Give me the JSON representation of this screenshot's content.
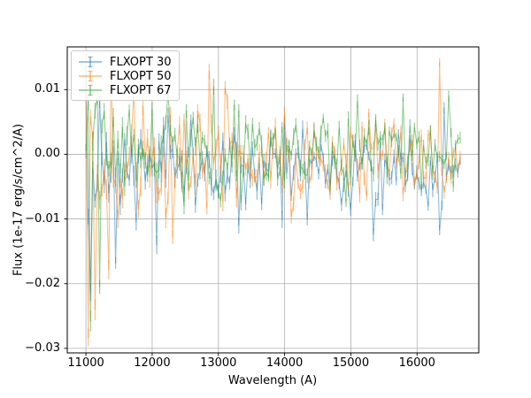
{
  "chart_data": {
    "type": "line",
    "subtype": "errorbar-spectrum",
    "title": "",
    "xlabel": "Wavelength (A)",
    "ylabel": "Flux (1e-17 erg/s/cm^2/A)",
    "xlim": [
      10718,
      16932
    ],
    "ylim": [
      -0.0307,
      0.0166
    ],
    "grid": true,
    "grid_color": "#b0b0b0",
    "spine_color": "#000000",
    "alpha": 0.5,
    "x_start": 11000,
    "x_end": 16650,
    "n_points": 165,
    "xticks": {
      "values": [
        11000,
        12000,
        13000,
        14000,
        15000,
        16000
      ],
      "labels": [
        "11000",
        "12000",
        "13000",
        "14000",
        "15000",
        "16000"
      ]
    },
    "yticks": {
      "values": [
        0.01,
        0.0,
        -0.01,
        -0.02,
        -0.03
      ],
      "labels": [
        "0.01",
        "0.00",
        "−0.01",
        "−0.02",
        "−0.03"
      ]
    },
    "legend": {
      "position": "upper left",
      "entries": [
        "FLXOPT 30",
        "FLXOPT 50",
        "FLXOPT 67"
      ]
    },
    "series": [
      {
        "name": "FLXOPT 30",
        "color": "#1f77b4",
        "seed": 7,
        "base_start": -0.0018,
        "base_end": -0.0022,
        "sigma_start": 0.0042,
        "sigma_end": 0.003,
        "edge_boost": 0.006,
        "edge_scale": 220,
        "err_start": 0.0013,
        "err_end": 0.0008,
        "clamp_min": -0.0225,
        "clamp_max": 0.012,
        "spikes": [
          [
            11080,
            -0.0213
          ],
          [
            11440,
            -0.0168
          ],
          [
            12080,
            -0.014
          ],
          [
            13300,
            -0.011
          ],
          [
            16350,
            -0.0117
          ]
        ]
      },
      {
        "name": "FLXOPT 50",
        "color": "#ff7f0e",
        "seed": 3,
        "base_start": -0.0012,
        "base_end": -0.0004,
        "sigma_start": 0.005,
        "sigma_end": 0.0026,
        "edge_boost": 0.0085,
        "edge_scale": 200,
        "err_start": 0.0014,
        "err_end": 0.0008,
        "clamp_min": -0.0285,
        "clamp_max": 0.0143,
        "spikes": [
          [
            11040,
            -0.0283
          ],
          [
            11140,
            -0.024
          ],
          [
            11360,
            -0.0178
          ],
          [
            12300,
            -0.0128
          ],
          [
            12850,
            0.0128
          ],
          [
            16330,
            0.0142
          ]
        ]
      },
      {
        "name": "FLXOPT 67",
        "color": "#2ca02c",
        "seed": 5,
        "base_start": -0.001,
        "base_end": 0.0016,
        "sigma_start": 0.0046,
        "sigma_end": 0.0026,
        "edge_boost": 0.0075,
        "edge_scale": 210,
        "err_start": 0.0013,
        "err_end": 0.0008,
        "clamp_min": -0.0262,
        "clamp_max": 0.0108,
        "spikes": [
          [
            11070,
            -0.0258
          ],
          [
            11210,
            -0.0205
          ],
          [
            12250,
            0.0096
          ],
          [
            12920,
            0.0104
          ],
          [
            16480,
            0.009
          ]
        ]
      }
    ]
  }
}
